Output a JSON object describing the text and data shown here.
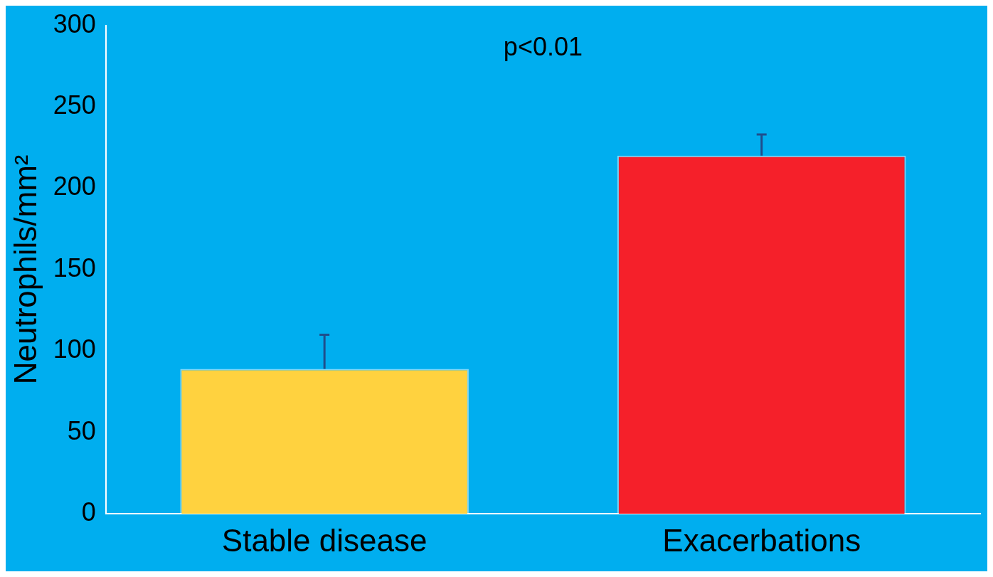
{
  "chart_data": {
    "type": "bar",
    "ylabel": "Neutrophils/mm²",
    "categories": [
      "Stable disease",
      "Exacerbations"
    ],
    "values": [
      89,
      220
    ],
    "colors": [
      "#ffd23f",
      "#f5202a"
    ],
    "errors": [
      [
        89,
        110
      ],
      [
        220,
        233
      ]
    ],
    "ylim": [
      0,
      300
    ],
    "yticks": [
      0,
      50,
      100,
      150,
      200,
      250,
      300
    ],
    "grid": false,
    "legend": false,
    "annotations": [
      "p<0.01"
    ]
  }
}
